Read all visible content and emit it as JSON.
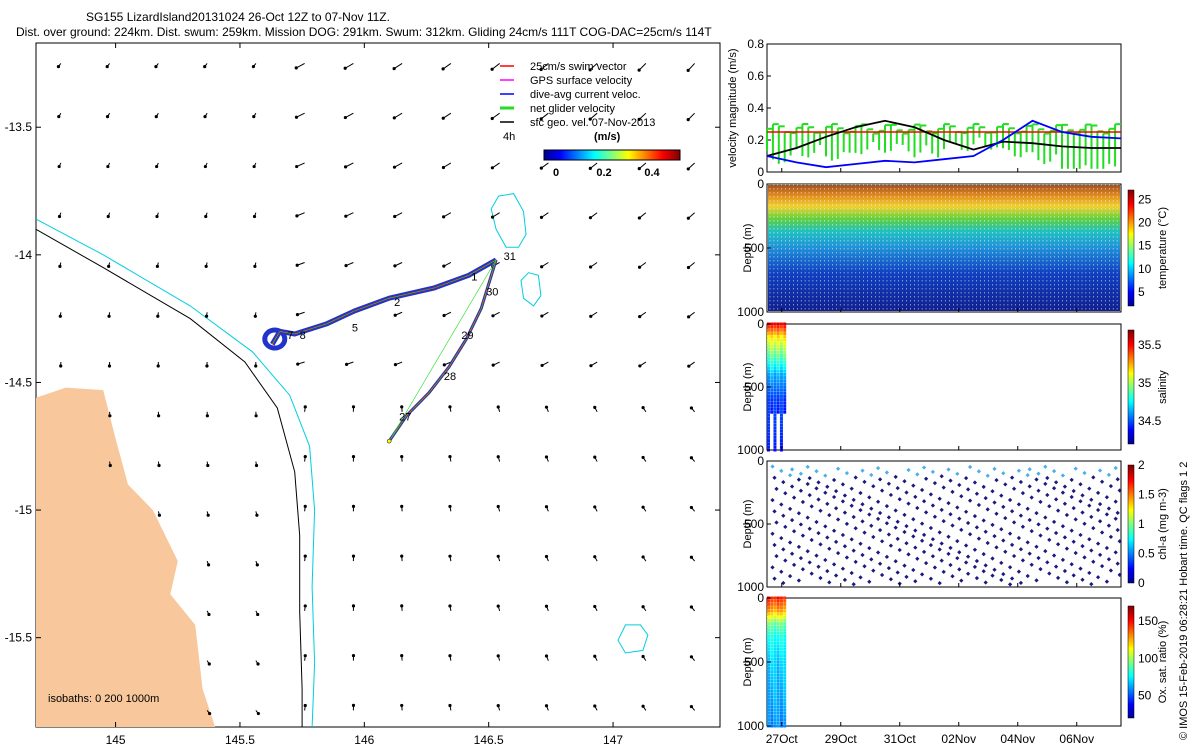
{
  "header": {
    "title_line1": "SG155 LizardIsland20131024 26-Oct 12Z to 07-Nov 11Z.",
    "title_line2": "Dist. over ground: 224km. Dist. swum: 259km. Mission DOG: 291km. Swum: 312km. Gliding 24cm/s 111T COG-DAC=25cm/s 114T"
  },
  "side_note": "© IMOS 15-Feb-2019 06:28:21 Hobart time. QC flags 1  2",
  "colors": {
    "land": "#f8c89c",
    "coast": "#00cfe0",
    "isobath_black": "#000000",
    "swim": "#ff0000",
    "gps": "#ff00ff",
    "dac": "#0000ff",
    "net": "#22dd22",
    "track_band": "#2233cc",
    "speed_line": "#ff0000"
  },
  "chart_data": [
    {
      "id": "map",
      "type": "scatter",
      "title": "",
      "xlim": [
        144.68,
        147.43
      ],
      "ylim": [
        -15.85,
        -13.17
      ],
      "xticks": [
        145,
        145.5,
        146,
        146.5,
        147
      ],
      "xtick_labels": [
        "145",
        "145.5",
        "146",
        "146.5",
        "147"
      ],
      "yticks": [
        -13.5,
        -14,
        -14.5,
        -15,
        -15.5
      ],
      "ytick_labels": [
        "-13.5",
        "-14",
        "-14.5",
        "-15",
        "-15.5"
      ],
      "legend": [
        {
          "label": "25cm/s swim vector",
          "color": "#ff0000"
        },
        {
          "label": "GPS surface velocity",
          "color": "#ff00ff"
        },
        {
          "label": "dive-avg current veloc.",
          "color": "#0000ff"
        },
        {
          "label": "net glider velocity",
          "color": "#22dd22"
        },
        {
          "label": "sfc geo. vel. 07-Nov-2013",
          "color": "#000000"
        }
      ],
      "vector_scale_label": "4h",
      "colorbar": {
        "label": "(m/s)",
        "ticks": [
          "0",
          "0.2",
          "0.4"
        ],
        "range": [
          0,
          0.5
        ]
      },
      "isobath_note": "isobaths: 0   200  1000m",
      "track_outbound": [
        [
          145.63,
          -14.35
        ],
        [
          145.66,
          -14.3
        ],
        [
          145.72,
          -14.31
        ],
        [
          145.85,
          -14.27
        ],
        [
          145.96,
          -14.22
        ],
        [
          146.1,
          -14.17
        ],
        [
          146.28,
          -14.13
        ],
        [
          146.42,
          -14.08
        ],
        [
          146.53,
          -14.02
        ]
      ],
      "track_return": [
        [
          146.53,
          -14.02
        ],
        [
          146.47,
          -14.21
        ],
        [
          146.41,
          -14.33
        ],
        [
          146.34,
          -14.44
        ],
        [
          146.26,
          -14.54
        ],
        [
          146.17,
          -14.63
        ],
        [
          146.1,
          -14.73
        ]
      ],
      "track_labels": [
        {
          "lon": 145.69,
          "lat": -14.33,
          "text": "7"
        },
        {
          "lon": 145.74,
          "lat": -14.33,
          "text": "8"
        },
        {
          "lon": 145.95,
          "lat": -14.3,
          "text": "5"
        },
        {
          "lon": 146.12,
          "lat": -14.2,
          "text": "2"
        },
        {
          "lon": 146.43,
          "lat": -14.1,
          "text": "1"
        },
        {
          "lon": 146.56,
          "lat": -14.02,
          "text": "31"
        },
        {
          "lon": 146.49,
          "lat": -14.16,
          "text": "30"
        },
        {
          "lon": 146.39,
          "lat": -14.33,
          "text": "29"
        },
        {
          "lon": 146.32,
          "lat": -14.49,
          "text": "28"
        },
        {
          "lon": 146.14,
          "lat": -14.65,
          "text": "27"
        }
      ],
      "reefs": [
        [
          [
            146.54,
            -13.77
          ],
          [
            146.6,
            -13.76
          ],
          [
            146.64,
            -13.83
          ],
          [
            146.65,
            -13.92
          ],
          [
            146.62,
            -13.97
          ],
          [
            146.57,
            -13.97
          ],
          [
            146.53,
            -13.9
          ],
          [
            146.51,
            -13.82
          ]
        ],
        [
          [
            146.66,
            -14.07
          ],
          [
            146.7,
            -14.08
          ],
          [
            146.71,
            -14.16
          ],
          [
            146.68,
            -14.2
          ],
          [
            146.64,
            -14.17
          ],
          [
            146.63,
            -14.1
          ]
        ],
        [
          [
            147.05,
            -15.45
          ],
          [
            147.11,
            -15.45
          ],
          [
            147.14,
            -15.49
          ],
          [
            147.12,
            -15.55
          ],
          [
            147.05,
            -15.56
          ],
          [
            147.02,
            -15.51
          ]
        ]
      ],
      "coastline_offshore": [
        [
          144.68,
          -13.86
        ],
        [
          144.95,
          -14.0
        ],
        [
          145.3,
          -14.2
        ],
        [
          145.55,
          -14.38
        ],
        [
          145.7,
          -14.55
        ],
        [
          145.78,
          -14.75
        ],
        [
          145.8,
          -15.0
        ],
        [
          145.79,
          -15.3
        ],
        [
          145.8,
          -15.6
        ],
        [
          145.79,
          -15.85
        ]
      ],
      "isobath_1000": [
        [
          144.68,
          -13.9
        ],
        [
          144.95,
          -14.05
        ],
        [
          145.3,
          -14.25
        ],
        [
          145.52,
          -14.42
        ],
        [
          145.65,
          -14.6
        ],
        [
          145.72,
          -14.85
        ],
        [
          145.74,
          -15.1
        ],
        [
          145.74,
          -15.4
        ],
        [
          145.75,
          -15.7
        ],
        [
          145.75,
          -15.85
        ]
      ],
      "land": [
        [
          144.68,
          -14.56
        ],
        [
          144.8,
          -14.52
        ],
        [
          144.95,
          -14.53
        ],
        [
          145.0,
          -14.72
        ],
        [
          145.05,
          -14.9
        ],
        [
          145.15,
          -15.0
        ],
        [
          145.25,
          -15.2
        ],
        [
          145.22,
          -15.33
        ],
        [
          145.32,
          -15.45
        ],
        [
          145.35,
          -15.7
        ],
        [
          145.4,
          -15.85
        ],
        [
          144.68,
          -15.85
        ]
      ]
    },
    {
      "id": "velocity",
      "type": "line",
      "ylabel": "velocity magnitude (m/s)",
      "ylim": [
        0,
        0.8
      ],
      "yticks": [
        0,
        0.2,
        0.4,
        0.6,
        0.8
      ],
      "ytick_labels": [
        "0",
        "0.2",
        "0.4",
        "0.6",
        "0.8"
      ],
      "series": [
        {
          "name": "swim speed",
          "color": "#ff0000",
          "x": [
            0,
            12
          ],
          "values": [
            0.25,
            0.25
          ]
        },
        {
          "name": "surface geostrophic",
          "color": "#000000",
          "x": [
            0,
            1,
            2,
            3,
            4,
            5,
            6,
            7,
            8,
            9,
            10,
            11,
            12
          ],
          "values": [
            0.1,
            0.15,
            0.22,
            0.28,
            0.32,
            0.28,
            0.2,
            0.14,
            0.19,
            0.18,
            0.16,
            0.15,
            0.15
          ]
        },
        {
          "name": "dive-avg current",
          "color": "#0000ff",
          "x": [
            0,
            1,
            2,
            3,
            4,
            5,
            6,
            7,
            8,
            9,
            10,
            11,
            12
          ],
          "values": [
            0.1,
            0.06,
            0.03,
            0.05,
            0.07,
            0.06,
            0.08,
            0.1,
            0.2,
            0.32,
            0.25,
            0.22,
            0.21
          ]
        },
        {
          "name": "net glider",
          "color": "#22dd22",
          "x": [
            0,
            1,
            2,
            3,
            4,
            5,
            6,
            7,
            8,
            9,
            10,
            11,
            12
          ],
          "values": [
            0.18,
            0.22,
            0.2,
            0.24,
            0.25,
            0.22,
            0.26,
            0.27,
            0.22,
            0.18,
            0.1,
            0.12,
            0.08
          ]
        }
      ]
    },
    {
      "id": "temperature",
      "type": "heatmap",
      "ylabel": "Depth (m)",
      "clabel": "temperature (°C)",
      "ylim": [
        1000,
        0
      ],
      "yticks": [
        "0",
        "500",
        "1000"
      ],
      "cticks": [
        "5",
        "10",
        "15",
        "20",
        "25"
      ],
      "crange": [
        3,
        29
      ],
      "profile": [
        [
          0,
          29
        ],
        [
          80,
          28
        ],
        [
          150,
          25
        ],
        [
          220,
          21
        ],
        [
          300,
          17
        ],
        [
          380,
          13
        ],
        [
          480,
          10
        ],
        [
          600,
          8
        ],
        [
          750,
          6
        ],
        [
          1000,
          4
        ]
      ]
    },
    {
      "id": "salinity",
      "type": "heatmap",
      "ylabel": "Depth (m)",
      "clabel": "salinity",
      "ylim": [
        1000,
        0
      ],
      "yticks": [
        "0",
        "500",
        "1000"
      ],
      "cticks": [
        "34.5",
        "35",
        "35.5"
      ],
      "crange": [
        34.3,
        36.0
      ],
      "x_extent_days": [
        0,
        0.7
      ],
      "profile": [
        [
          0,
          35.8
        ],
        [
          100,
          35.4
        ],
        [
          200,
          35.2
        ],
        [
          300,
          35.0
        ],
        [
          400,
          34.8
        ],
        [
          600,
          34.6
        ],
        [
          1000,
          34.5
        ]
      ]
    },
    {
      "id": "chla",
      "type": "scatter",
      "ylabel": "Depth (m)",
      "clabel": "chl-a (mg m-3)",
      "ylim": [
        1000,
        0
      ],
      "yticks": [
        "0",
        "500",
        "1000"
      ],
      "cticks": [
        "0",
        "0.5",
        "1",
        "1.5",
        "2"
      ],
      "crange": [
        0,
        2
      ]
    },
    {
      "id": "oxygen",
      "type": "heatmap",
      "ylabel": "Depth (m)",
      "clabel": "Ox. sat. ratio (%)",
      "ylim": [
        1000,
        0
      ],
      "yticks": [
        "0",
        "500",
        "1000"
      ],
      "cticks": [
        "50",
        "100",
        "150"
      ],
      "crange": [
        20,
        175
      ],
      "x_extent_days": [
        0,
        0.7
      ],
      "profile": [
        [
          0,
          150
        ],
        [
          100,
          130
        ],
        [
          200,
          95
        ],
        [
          300,
          80
        ],
        [
          500,
          70
        ],
        [
          1000,
          60
        ]
      ]
    }
  ],
  "time_axis": {
    "range_days": [
      0,
      12
    ],
    "ticks": [
      0.5,
      2.5,
      4.5,
      6.5,
      8.5,
      10.5
    ],
    "labels": [
      "27Oct",
      "29Oct",
      "31Oct",
      "02Nov",
      "04Nov",
      "06Nov"
    ]
  }
}
